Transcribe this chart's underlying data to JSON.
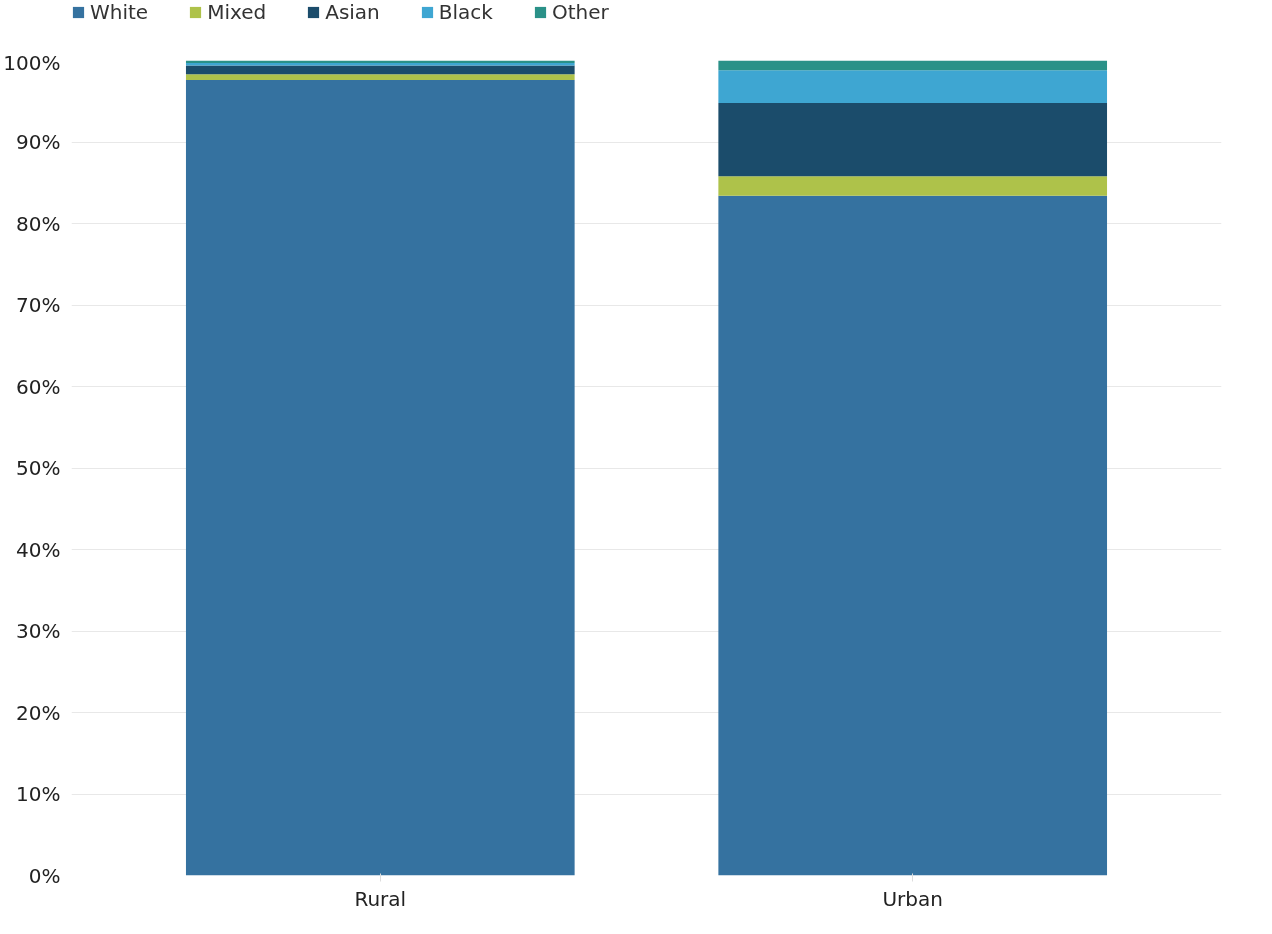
{
  "chart_data": {
    "type": "bar",
    "stacked": true,
    "categories": [
      "Rural",
      "Urban"
    ],
    "series": [
      {
        "name": "White",
        "color": "#3572a0",
        "values": [
          97.6,
          83.4
        ]
      },
      {
        "name": "Mixed",
        "color": "#aec24a",
        "values": [
          0.7,
          2.4
        ]
      },
      {
        "name": "Asian",
        "color": "#1b4c6b",
        "values": [
          1.1,
          9.0
        ]
      },
      {
        "name": "Black",
        "color": "#3ea6d2",
        "values": [
          0.3,
          4.0
        ]
      },
      {
        "name": "Other",
        "color": "#2a9188",
        "values": [
          0.3,
          1.2
        ]
      }
    ],
    "ylim": [
      0,
      100
    ],
    "yticks": [
      {
        "value": 0,
        "label": "0%"
      },
      {
        "value": 10,
        "label": "10%"
      },
      {
        "value": 20,
        "label": "20%"
      },
      {
        "value": 30,
        "label": "30%"
      },
      {
        "value": 40,
        "label": "40%"
      },
      {
        "value": 50,
        "label": "50%"
      },
      {
        "value": 60,
        "label": "60%"
      },
      {
        "value": 70,
        "label": "70%"
      },
      {
        "value": 80,
        "label": "80%"
      },
      {
        "value": 90,
        "label": "90%"
      },
      {
        "value": 100,
        "label": "100%"
      }
    ],
    "grid": "y",
    "legend": "top left"
  }
}
